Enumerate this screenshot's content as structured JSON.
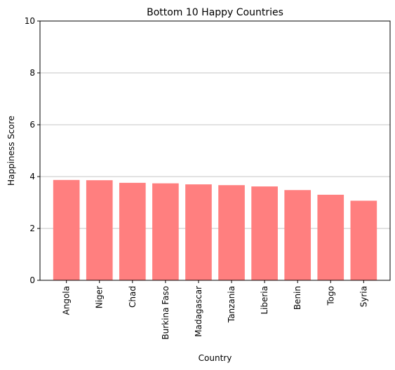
{
  "chart_data": {
    "type": "bar",
    "title": "Bottom 10 Happy Countries",
    "xlabel": "Country",
    "ylabel": "Happiness Score",
    "categories": [
      "Angola",
      "Niger",
      "Chad",
      "Burkina Faso",
      "Madagascar",
      "Tanzania",
      "Liberia",
      "Benin",
      "Togo",
      "Syria"
    ],
    "values": [
      3.87,
      3.86,
      3.76,
      3.74,
      3.7,
      3.67,
      3.62,
      3.48,
      3.3,
      3.07
    ],
    "ylim": [
      0,
      10
    ],
    "yticks": [
      0,
      2,
      4,
      6,
      8,
      10
    ],
    "grid": "y-axis major gridlines",
    "bar_color": "#ff7f7f",
    "legend": "none"
  }
}
